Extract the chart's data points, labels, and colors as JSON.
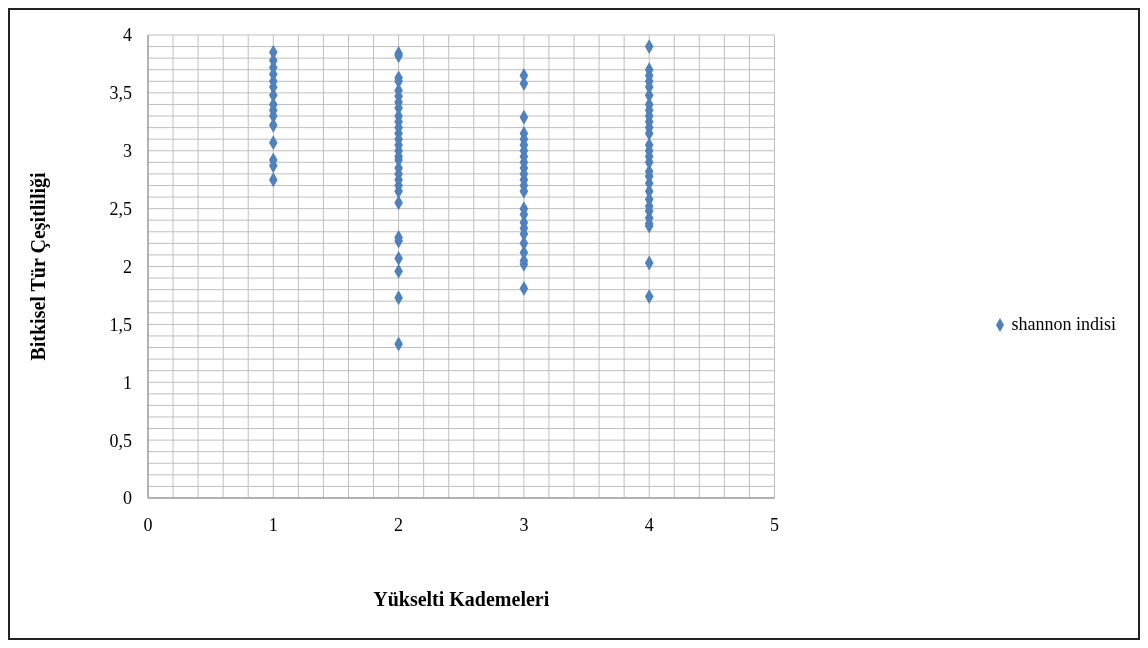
{
  "chart_data": {
    "type": "scatter",
    "xlabel": "Yükselti Kademeleri",
    "ylabel": "Bitkisel Tür Çeşitliliği",
    "xlim": [
      0,
      5
    ],
    "xticks": [
      0,
      {
        "value": 0.2,
        "label": null
      },
      {
        "value": 0.4,
        "label": null
      },
      {
        "value": 0.6,
        "label": null
      },
      {
        "value": 0.8,
        "label": null
      },
      1,
      {
        "value": 1.2,
        "label": null
      },
      {
        "value": 1.4,
        "label": null
      },
      {
        "value": 1.6,
        "label": null
      },
      {
        "value": 1.8,
        "label": null
      },
      2,
      {
        "value": 2.2,
        "label": null
      },
      {
        "value": 2.4,
        "label": null
      },
      {
        "value": 2.6,
        "label": null
      },
      {
        "value": 2.8,
        "label": null
      },
      3,
      {
        "value": 3.2,
        "label": null
      },
      {
        "value": 3.4,
        "label": null
      },
      {
        "value": 3.6,
        "label": null
      },
      {
        "value": 3.8,
        "label": null
      },
      4,
      {
        "value": 4.2,
        "label": null
      },
      {
        "value": 4.4,
        "label": null
      },
      {
        "value": 4.6,
        "label": null
      },
      {
        "value": 4.8,
        "label": null
      },
      5
    ],
    "ylim": [
      0,
      4
    ],
    "yticks": [
      0,
      {
        "value": 0.1,
        "label": null
      },
      {
        "value": 0.2,
        "label": null
      },
      {
        "value": 0.3,
        "label": null
      },
      {
        "value": 0.4,
        "label": null
      },
      {
        "value": 0.5,
        "label": "0,5"
      },
      {
        "value": 0.6,
        "label": null
      },
      {
        "value": 0.7,
        "label": null
      },
      {
        "value": 0.8,
        "label": null
      },
      {
        "value": 0.9,
        "label": null
      },
      1,
      {
        "value": 1.1,
        "label": null
      },
      {
        "value": 1.2,
        "label": null
      },
      {
        "value": 1.3,
        "label": null
      },
      {
        "value": 1.4,
        "label": null
      },
      {
        "value": 1.5,
        "label": "1,5"
      },
      {
        "value": 1.6,
        "label": null
      },
      {
        "value": 1.7,
        "label": null
      },
      {
        "value": 1.8,
        "label": null
      },
      {
        "value": 1.9,
        "label": null
      },
      2,
      {
        "value": 2.1,
        "label": null
      },
      {
        "value": 2.2,
        "label": null
      },
      {
        "value": 2.3,
        "label": null
      },
      {
        "value": 2.4,
        "label": null
      },
      {
        "value": 2.5,
        "label": "2,5"
      },
      {
        "value": 2.6,
        "label": null
      },
      {
        "value": 2.7,
        "label": null
      },
      {
        "value": 2.8,
        "label": null
      },
      {
        "value": 2.9,
        "label": null
      },
      3,
      {
        "value": 3.1,
        "label": null
      },
      {
        "value": 3.2,
        "label": null
      },
      {
        "value": 3.3,
        "label": null
      },
      {
        "value": 3.4,
        "label": null
      },
      {
        "value": 3.5,
        "label": "3,5"
      },
      {
        "value": 3.6,
        "label": null
      },
      {
        "value": 3.7,
        "label": null
      },
      {
        "value": 3.8,
        "label": null
      },
      {
        "value": 3.9,
        "label": null
      },
      4
    ],
    "grid": true,
    "legend": "right",
    "marker": "diamond",
    "series": [
      {
        "name": "shannon indisi",
        "color": "#4f81bd",
        "x": [
          1,
          1,
          1,
          1,
          1,
          1,
          1,
          1,
          1,
          1,
          1,
          1,
          1,
          1,
          1,
          2,
          2,
          2,
          2,
          2,
          2,
          2,
          2,
          2,
          2,
          2,
          2,
          2,
          2,
          2,
          2,
          2,
          2,
          2,
          2,
          2,
          2,
          2,
          2,
          2,
          2,
          2,
          2,
          2,
          3,
          3,
          3,
          3,
          3,
          3,
          3,
          3,
          3,
          3,
          3,
          3,
          3,
          3,
          3,
          3,
          3,
          3,
          3,
          3,
          3,
          3,
          3,
          3,
          4,
          4,
          4,
          4,
          4,
          4,
          4,
          4,
          4,
          4,
          4,
          4,
          4,
          4,
          4,
          4,
          4,
          4,
          4,
          4,
          4,
          4,
          4,
          4,
          4,
          4,
          4,
          4
        ],
        "values": [
          3.85,
          3.78,
          3.72,
          3.66,
          3.6,
          3.55,
          3.48,
          3.4,
          3.35,
          3.3,
          3.22,
          3.07,
          2.92,
          2.87,
          2.75,
          3.84,
          3.82,
          3.63,
          3.6,
          3.52,
          3.47,
          3.42,
          3.37,
          3.3,
          3.25,
          3.2,
          3.15,
          3.1,
          3.05,
          3.0,
          2.95,
          2.92,
          2.85,
          2.8,
          2.75,
          2.7,
          2.65,
          2.55,
          2.25,
          2.22,
          2.07,
          1.96,
          1.73,
          1.33,
          3.65,
          3.58,
          3.29,
          3.15,
          3.1,
          3.05,
          3.0,
          2.95,
          2.9,
          2.85,
          2.8,
          2.75,
          2.7,
          2.65,
          2.5,
          2.45,
          2.38,
          2.33,
          2.28,
          2.2,
          2.12,
          2.05,
          2.02,
          1.81,
          3.9,
          3.7,
          3.65,
          3.6,
          3.55,
          3.48,
          3.4,
          3.35,
          3.3,
          3.25,
          3.2,
          3.15,
          3.05,
          3.0,
          2.95,
          2.9,
          2.82,
          2.78,
          2.72,
          2.65,
          2.58,
          2.52,
          2.48,
          2.42,
          2.37,
          2.35,
          2.03,
          1.74
        ]
      }
    ]
  }
}
